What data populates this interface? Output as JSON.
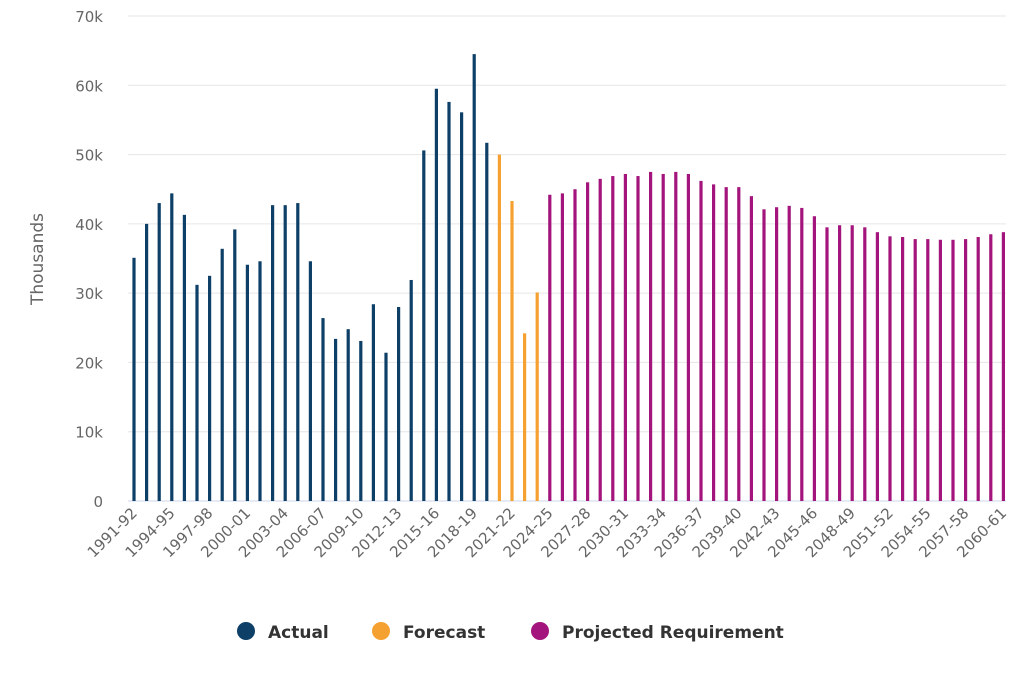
{
  "chart_data": {
    "type": "bar",
    "title": "",
    "xlabel": "",
    "ylabel": "Thousands",
    "ylim": [
      0,
      70000
    ],
    "yticks": [
      0,
      10000,
      20000,
      30000,
      40000,
      50000,
      60000,
      70000
    ],
    "ytick_labels": [
      "0",
      "10k",
      "20k",
      "30k",
      "40k",
      "50k",
      "60k",
      "70k"
    ],
    "grid": true,
    "legend_position": "bottom",
    "xtick_labels": [
      "1991-92",
      "1994-95",
      "1997-98",
      "2000-01",
      "2003-04",
      "2006-07",
      "2009-10",
      "2012-13",
      "2015-16",
      "2018-19",
      "2021-22",
      "2024-25",
      "2027-28",
      "2030-31",
      "2033-34",
      "2036-37",
      "2039-40",
      "2042-43",
      "2045-46",
      "2048-49",
      "2051-52",
      "2054-55",
      "2057-58",
      "2060-61"
    ],
    "first_year": 1991,
    "series": [
      {
        "name": "Actual",
        "color": "#0d3f67",
        "start": "1991-92",
        "values": [
          35100,
          40000,
          43000,
          44400,
          41300,
          31200,
          32500,
          36400,
          39200,
          34100,
          34600,
          42700,
          42700,
          43000,
          34600,
          26400,
          23400,
          24800,
          23100,
          28400,
          21400,
          28000,
          31900,
          50600,
          59500,
          57600,
          56100,
          64500,
          51700
        ]
      },
      {
        "name": "Forecast",
        "color": "#f5a131",
        "start": "2020-21",
        "values": [
          50000,
          43300,
          24200,
          30100
        ]
      },
      {
        "name": "Projected Requirement",
        "color": "#a3157c",
        "start": "2024-25",
        "values": [
          44200,
          44400,
          45000,
          46000,
          46500,
          46900,
          47200,
          46900,
          47500,
          47200,
          47500,
          47200,
          46200,
          45700,
          45300,
          45300,
          44000,
          42100,
          42400,
          42600,
          42300,
          41100,
          39500,
          39800,
          39800,
          39500,
          38800,
          38200,
          38100,
          37800,
          37800,
          37700,
          37700,
          37800,
          38100,
          38500,
          38800
        ]
      }
    ]
  }
}
